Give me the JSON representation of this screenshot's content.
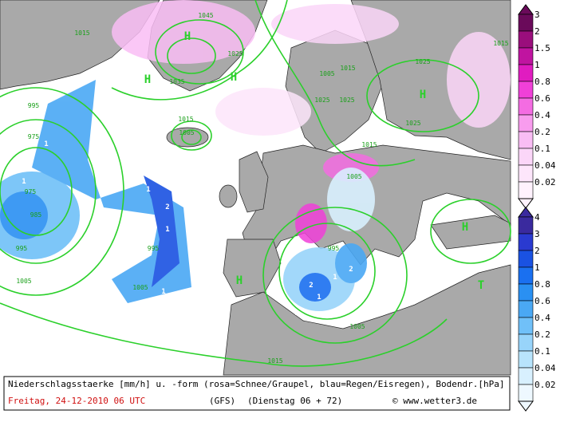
{
  "map": {
    "legend_snow": {
      "levels": [
        3,
        2,
        1.5,
        1,
        0.8,
        0.6,
        0.4,
        0.2,
        0.1,
        0.04,
        0.02
      ],
      "colors": [
        "#6a0a5a",
        "#9a0e7c",
        "#c014a0",
        "#e01cc0",
        "#f040d8",
        "#f46ce2",
        "#f89cee",
        "#f9bdf4",
        "#fbd6f8",
        "#fde6fb",
        "#fff2fd"
      ]
    },
    "legend_rain": {
      "levels": [
        4,
        3,
        2,
        1,
        0.8,
        0.6,
        0.4,
        0.2,
        0.1,
        0.04,
        0.02
      ],
      "colors": [
        "#3a2a9e",
        "#2a3ad0",
        "#1a52e2",
        "#1a70f0",
        "#2a90f2",
        "#4aa8f4",
        "#70c0f8",
        "#98d4fa",
        "#b8e4fc",
        "#d8f0fe",
        "#eef8ff"
      ]
    },
    "caption": {
      "line1": "Niederschlagsstaerke [mm/h] u. -form (rosa=Schnee/Graupel, blau=Regen/Eisregen), Bodendr.[hPa]",
      "date": "Freitag, 24-12-2010  06 UTC",
      "model": "(GFS)",
      "run": "(Dienstag 06 + 72)",
      "credit": "© www.wetter3.de"
    },
    "pressure_centers": [
      "H",
      "H",
      "H",
      "H",
      "H",
      "T",
      "H"
    ],
    "isobar_labels": [
      "1045",
      "1025",
      "1015",
      "1035",
      "1005",
      "1015",
      "1025",
      "1025",
      "1025",
      "1025",
      "1015",
      "995",
      "975",
      "975",
      "985",
      "995",
      "1005",
      "1015",
      "1005",
      "1015",
      "1005",
      "995",
      "1005",
      "1015",
      "995",
      "1005"
    ],
    "precip_labels": [
      "1",
      "1",
      "1",
      "2",
      "1",
      "2",
      "1",
      "2",
      "1",
      "1",
      "2",
      "1",
      "2",
      "1",
      "1"
    ]
  }
}
